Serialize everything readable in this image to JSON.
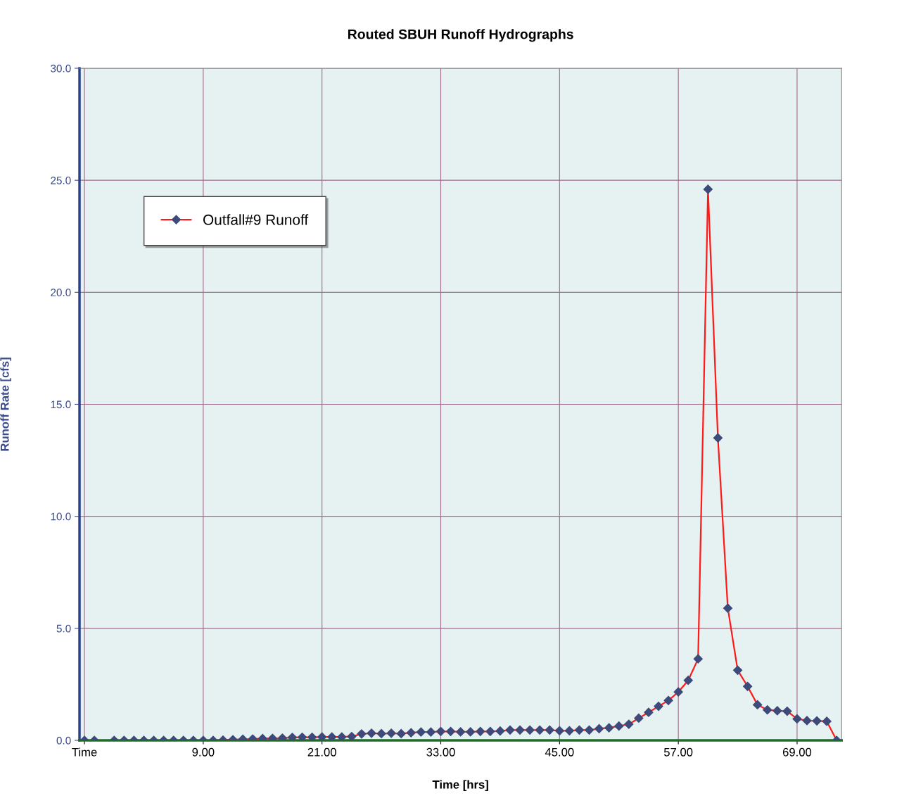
{
  "chart_data": {
    "type": "line",
    "title": "Routed SBUH Runoff Hydrographs",
    "xlabel": "Time [hrs]",
    "ylabel": "Runoff Rate [cfs]",
    "categories": [
      "Time",
      null,
      null,
      null,
      null,
      null,
      null,
      null,
      null,
      null,
      null,
      null,
      "9.00",
      null,
      null,
      null,
      null,
      null,
      null,
      null,
      null,
      null,
      null,
      null,
      "21.00",
      null,
      null,
      null,
      null,
      null,
      null,
      null,
      null,
      null,
      null,
      null,
      "33.00",
      null,
      null,
      null,
      null,
      null,
      null,
      null,
      null,
      null,
      null,
      null,
      "45.00",
      null,
      null,
      null,
      null,
      null,
      null,
      null,
      null,
      null,
      null,
      null,
      "57.00",
      null,
      null,
      null,
      null,
      null,
      null,
      null,
      null,
      null,
      null,
      null,
      "69.00",
      null,
      null,
      null,
      null
    ],
    "series": [
      {
        "name": "Outfall#9 Runoff",
        "color": "#ff1a1a",
        "values": [
          0,
          0,
          null,
          0,
          0,
          0,
          0,
          0,
          0,
          0,
          0,
          0,
          0,
          0,
          0.01,
          0.03,
          0.05,
          0.06,
          0.08,
          0.09,
          0.1,
          0.13,
          0.14,
          0.14,
          0.15,
          0.15,
          0.15,
          0.17,
          0.29,
          0.32,
          0.3,
          0.32,
          0.3,
          0.34,
          0.37,
          0.37,
          0.4,
          0.4,
          0.38,
          0.38,
          0.4,
          0.4,
          0.42,
          0.46,
          0.46,
          0.46,
          0.46,
          0.46,
          0.43,
          0.43,
          0.46,
          0.46,
          0.52,
          0.56,
          0.64,
          0.72,
          0.99,
          1.25,
          1.52,
          1.78,
          2.16,
          2.68,
          3.64,
          24.6,
          13.5,
          5.9,
          3.13,
          2.41,
          1.59,
          1.36,
          1.32,
          1.3,
          0.96,
          0.88,
          0.87,
          0.85,
          0
        ]
      }
    ],
    "ylim": [
      0,
      30
    ],
    "yticks": [
      {
        "value": 0,
        "label": "0.0"
      },
      {
        "value": 5,
        "label": "5.0"
      },
      {
        "value": 10,
        "label": "10.0"
      },
      {
        "value": 15,
        "label": "15.0"
      },
      {
        "value": 20,
        "label": "20.0"
      },
      {
        "value": 25,
        "label": "25.0"
      },
      {
        "value": 30,
        "label": "30.0"
      }
    ],
    "grid": true,
    "legend": "top left",
    "marker": "diamond",
    "line_style": "solid"
  }
}
